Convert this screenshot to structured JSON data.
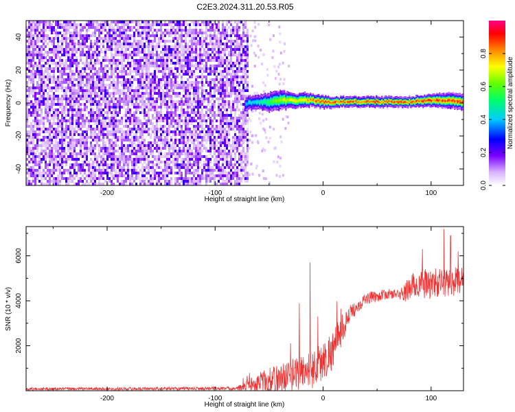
{
  "title": "C2E3.2024.311.20.53.R05",
  "chart_data": [
    {
      "type": "heatmap",
      "xlabel": "Height of straight line (km)",
      "ylabel": "Frequency (Hz)",
      "xlim": [
        -275,
        130
      ],
      "ylim": [
        -50,
        50
      ],
      "x_ticks": [
        -200,
        -100,
        0,
        100
      ],
      "x_tick_labels": [
        "-200",
        "-100",
        "0",
        "100"
      ],
      "y_ticks": [
        -40,
        -20,
        0,
        20,
        40
      ],
      "y_tick_labels": [
        "-40",
        "-20",
        "0",
        "20",
        "40"
      ],
      "colorbar": {
        "label": "Normalized spectral amplitude",
        "range": [
          0,
          1
        ],
        "ticks": [
          0,
          0.2,
          0.4,
          0.6,
          0.8
        ],
        "tick_labels": [
          "0.0",
          "0.2",
          "0.4",
          "0.6",
          "0.8"
        ]
      },
      "noise_region_x": [
        -275,
        -70
      ],
      "signal_band": {
        "x": [
          -72,
          -60,
          -50,
          -40,
          -30,
          -20,
          -10,
          0,
          20,
          40,
          60,
          80,
          100,
          115,
          130
        ],
        "center_freq": [
          0,
          1,
          1,
          2,
          2,
          2,
          2,
          1,
          1,
          1,
          1,
          1,
          2,
          2,
          1
        ],
        "half_width": [
          3,
          3,
          4,
          4,
          3,
          3,
          2.5,
          2.5,
          2,
          2,
          2,
          2,
          2.5,
          3,
          3
        ],
        "peak_amplitude": [
          0.45,
          0.5,
          0.6,
          0.7,
          0.75,
          0.8,
          0.9,
          0.95,
          0.95,
          0.95,
          0.95,
          0.95,
          0.95,
          0.95,
          0.95
        ]
      },
      "grid": false
    },
    {
      "type": "line",
      "xlabel": "Height of straight line (km)",
      "ylabel": "SNR (10 * v/v)",
      "xlim": [
        -275,
        130
      ],
      "ylim": [
        0,
        7300
      ],
      "x_ticks": [
        -200,
        -100,
        0,
        100
      ],
      "x_tick_labels": [
        "-200",
        "-100",
        "0",
        "100"
      ],
      "y_ticks": [
        2000,
        4000,
        6000
      ],
      "y_tick_labels": [
        "2000",
        "4000",
        "6000"
      ],
      "series": [
        {
          "color": "#ee3333",
          "trend": {
            "x": [
              -275,
              -80,
              -70,
              -50,
              -30,
              -10,
              0,
              10,
              20,
              30,
              40,
              60,
              75,
              80,
              90,
              100,
              110,
              130
            ],
            "y": [
              80,
              100,
              200,
              450,
              700,
              1000,
              1300,
              1900,
              3000,
              3700,
              4100,
              4300,
              4300,
              4600,
              4750,
              4750,
              4800,
              4900
            ]
          },
          "noise_amplitude": {
            "x": [
              -275,
              -80,
              -60,
              -30,
              -10,
              10,
              30,
              70,
              80,
              100,
              130
            ],
            "y": [
              60,
              80,
              500,
              700,
              900,
              900,
              300,
              200,
              600,
              700,
              600
            ]
          },
          "spikes": [
            {
              "x": -12,
              "y": 5700
            },
            {
              "x": -22,
              "y": 3900
            },
            {
              "x": -5,
              "y": 3300
            },
            {
              "x": 112,
              "y": 7200
            },
            {
              "x": 118,
              "y": 6900
            },
            {
              "x": 92,
              "y": 6300
            },
            {
              "x": 125,
              "y": 6200
            }
          ]
        }
      ],
      "grid": false
    }
  ]
}
